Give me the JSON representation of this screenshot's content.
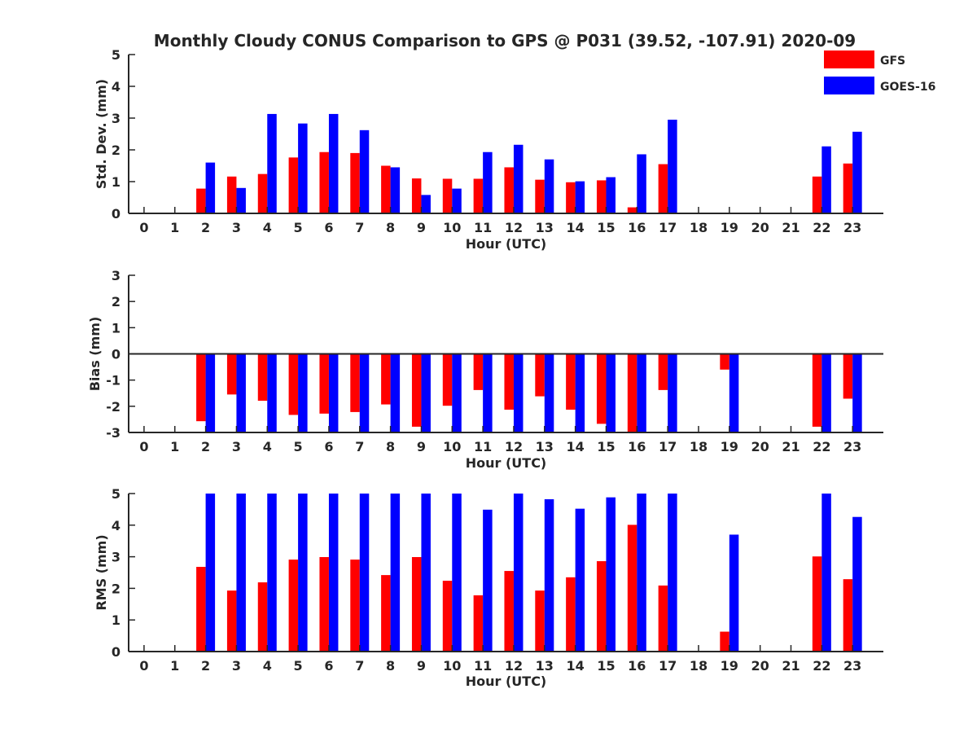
{
  "title": "Monthly Cloudy CONUS Comparison to GPS @ P031 (39.52, -107.91) 2020-09",
  "colors": {
    "GFS": "#ff0000",
    "GOES-16": "#0000ff",
    "axis": "#262626"
  },
  "legend": {
    "placement": "top-right",
    "entries": [
      "GFS",
      "GOES-16"
    ]
  },
  "chart_data": [
    {
      "type": "bar",
      "categories": [
        "0",
        "1",
        "2",
        "3",
        "4",
        "5",
        "6",
        "7",
        "8",
        "9",
        "10",
        "11",
        "12",
        "13",
        "14",
        "15",
        "16",
        "17",
        "18",
        "19",
        "20",
        "21",
        "22",
        "23"
      ],
      "xlabel": "Hour (UTC)",
      "ylabel": "Std. Dev. (mm)",
      "ylim": [
        0,
        5
      ],
      "yticks": [
        "0",
        "1",
        "2",
        "3",
        "4",
        "5"
      ],
      "series": [
        {
          "name": "GFS",
          "values": [
            null,
            null,
            0.78,
            1.16,
            1.24,
            1.76,
            1.93,
            1.9,
            1.5,
            1.1,
            1.09,
            1.09,
            1.45,
            1.06,
            0.98,
            1.04,
            0.19,
            1.55,
            null,
            null,
            null,
            null,
            1.16,
            1.57
          ]
        },
        {
          "name": "GOES-16",
          "values": [
            null,
            null,
            1.6,
            0.8,
            3.13,
            2.83,
            3.13,
            2.62,
            1.45,
            0.58,
            0.78,
            1.93,
            2.16,
            1.7,
            1.01,
            1.14,
            1.86,
            2.95,
            null,
            null,
            null,
            null,
            2.11,
            2.57
          ]
        }
      ]
    },
    {
      "type": "bar",
      "categories": [
        "0",
        "1",
        "2",
        "3",
        "4",
        "5",
        "6",
        "7",
        "8",
        "9",
        "10",
        "11",
        "12",
        "13",
        "14",
        "15",
        "16",
        "17",
        "18",
        "19",
        "20",
        "21",
        "22",
        "23"
      ],
      "xlabel": "Hour (UTC)",
      "ylabel": "Bias (mm)",
      "ylim": [
        -3,
        3
      ],
      "yticks": [
        "-3",
        "-2",
        "-1",
        "0",
        "1",
        "2",
        "3"
      ],
      "series": [
        {
          "name": "GFS",
          "values": [
            null,
            null,
            -2.57,
            -1.55,
            -1.79,
            -2.33,
            -2.28,
            -2.22,
            -1.93,
            -2.78,
            -1.98,
            -1.38,
            -2.13,
            -1.62,
            -2.13,
            -2.67,
            -3.0,
            -1.38,
            null,
            -0.6,
            null,
            null,
            -2.78,
            -1.71
          ]
        },
        {
          "name": "GOES-16",
          "values": [
            null,
            null,
            -3.0,
            -3.0,
            -3.0,
            -3.0,
            -3.0,
            -3.0,
            -3.0,
            -3.0,
            -3.0,
            -3.0,
            -3.0,
            -3.0,
            -3.0,
            -3.0,
            -3.0,
            -3.0,
            null,
            -3.0,
            null,
            null,
            -3.0,
            -3.0
          ]
        }
      ]
    },
    {
      "type": "bar",
      "categories": [
        "0",
        "1",
        "2",
        "3",
        "4",
        "5",
        "6",
        "7",
        "8",
        "9",
        "10",
        "11",
        "12",
        "13",
        "14",
        "15",
        "16",
        "17",
        "18",
        "19",
        "20",
        "21",
        "22",
        "23"
      ],
      "xlabel": "Hour (UTC)",
      "ylabel": "RMS (mm)",
      "ylim": [
        0,
        5
      ],
      "yticks": [
        "0",
        "1",
        "2",
        "3",
        "4",
        "5"
      ],
      "series": [
        {
          "name": "GFS",
          "values": [
            null,
            null,
            2.68,
            1.93,
            2.19,
            2.91,
            2.99,
            2.91,
            2.42,
            2.99,
            2.24,
            1.78,
            2.55,
            1.93,
            2.35,
            2.86,
            4.01,
            2.09,
            null,
            0.63,
            null,
            null,
            3.01,
            2.29
          ]
        },
        {
          "name": "GOES-16",
          "values": [
            null,
            null,
            5.0,
            5.0,
            5.0,
            5.0,
            5.0,
            5.0,
            5.0,
            5.0,
            5.0,
            4.49,
            5.0,
            4.82,
            4.52,
            4.88,
            5.0,
            5.0,
            null,
            3.7,
            null,
            null,
            5.0,
            4.26
          ]
        }
      ]
    }
  ]
}
